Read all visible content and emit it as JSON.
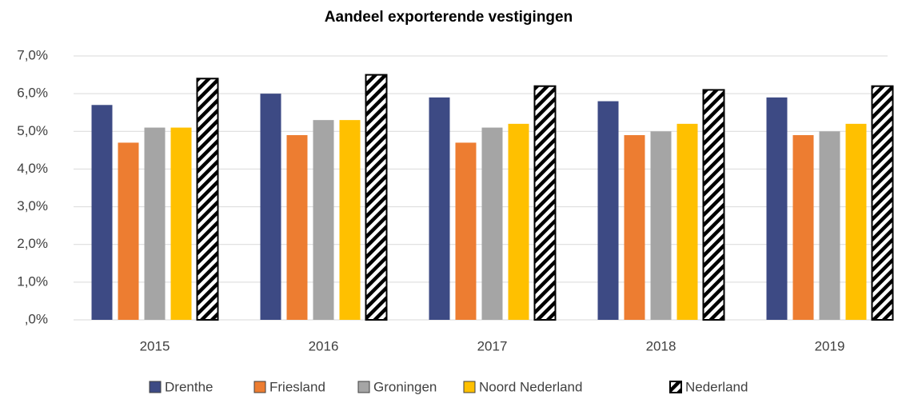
{
  "chart_data": {
    "type": "bar",
    "title": "Aandeel exporterende vestigingen",
    "categories": [
      "2015",
      "2016",
      "2017",
      "2018",
      "2019"
    ],
    "series": [
      {
        "name": "Drenthe",
        "color": "#3d4a84",
        "values": [
          5.7,
          6.0,
          5.9,
          5.8,
          5.9
        ]
      },
      {
        "name": "Friesland",
        "color": "#ed7d31",
        "values": [
          4.7,
          4.9,
          4.7,
          4.9,
          4.9
        ]
      },
      {
        "name": "Groningen",
        "color": "#a5a5a5",
        "values": [
          5.1,
          5.3,
          5.1,
          5.0,
          5.0
        ]
      },
      {
        "name": "Noord Nederland",
        "color": "#ffc000",
        "values": [
          5.1,
          5.3,
          5.2,
          5.2,
          5.2
        ]
      },
      {
        "name": "Nederland",
        "color": "#000000",
        "pattern": "diagonal-stripes",
        "values": [
          6.4,
          6.5,
          6.2,
          6.1,
          6.2
        ]
      }
    ],
    "ylim": [
      0,
      7
    ],
    "yticks": [
      {
        "value": 0,
        "label": ",0%"
      },
      {
        "value": 1,
        "label": "1,0%"
      },
      {
        "value": 2,
        "label": "2,0%"
      },
      {
        "value": 3,
        "label": "3,0%"
      },
      {
        "value": 4,
        "label": "4,0%"
      },
      {
        "value": 5,
        "label": "5,0%"
      },
      {
        "value": 6,
        "label": "6,0%"
      },
      {
        "value": 7,
        "label": "7,0%"
      }
    ],
    "grid": true,
    "legend": "bottom"
  }
}
